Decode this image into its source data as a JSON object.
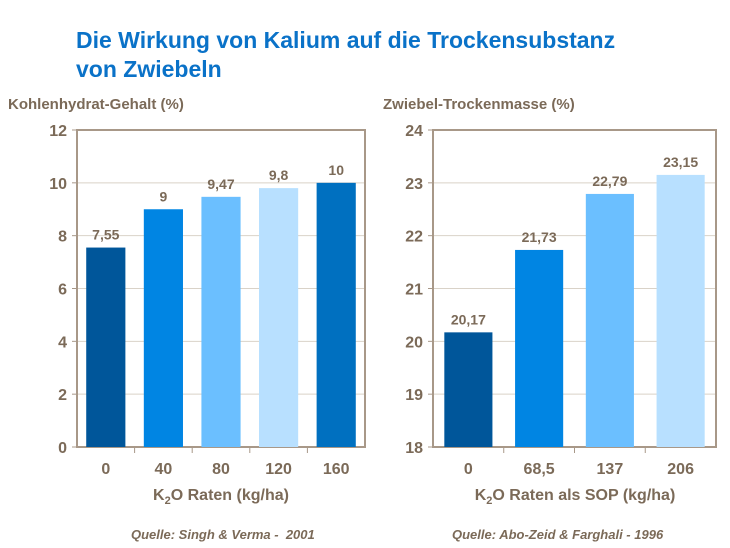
{
  "title_line1": "Die Wirkung von Kalium auf die Trockensubstanz",
  "title_line2": "von Zwiebeln",
  "chart_data": [
    {
      "type": "bar",
      "ylabel": "Kohlenhydrat-Gehalt (%)",
      "xlabel_pre": "K",
      "xlabel_sub": "2",
      "xlabel_post": "O Raten (kg/ha)",
      "categories": [
        "0",
        "40",
        "80",
        "120",
        "160"
      ],
      "values": [
        7.55,
        9,
        9.47,
        9.8,
        10
      ],
      "labels": [
        "7,55",
        "9",
        "9,47",
        "9,8",
        "10"
      ],
      "ylim": [
        0,
        12
      ],
      "yticks": [
        0,
        2,
        4,
        6,
        8,
        10,
        12
      ],
      "grid": true,
      "colors": [
        "#00569a",
        "#0085e3",
        "#6bbfff",
        "#b8e0ff",
        "#0070c0"
      ],
      "source": "Quelle: Singh & Verma -  2001"
    },
    {
      "type": "bar",
      "ylabel": "Zwiebel-Trockenmasse (%)",
      "xlabel_pre": "K",
      "xlabel_sub": "2",
      "xlabel_post": "O Raten als SOP (kg/ha)",
      "categories": [
        "0",
        "68,5",
        "137",
        "206"
      ],
      "values": [
        20.17,
        21.73,
        22.79,
        23.15
      ],
      "labels": [
        "20,17",
        "21,73",
        "22,79",
        "23,15"
      ],
      "ylim": [
        18,
        24
      ],
      "yticks": [
        18,
        19,
        20,
        21,
        22,
        23,
        24
      ],
      "grid": true,
      "colors": [
        "#00569a",
        "#0085e3",
        "#6bbfff",
        "#b8e0ff"
      ],
      "source": "Quelle: Abo-Zeid & Farghali - 1996"
    }
  ]
}
